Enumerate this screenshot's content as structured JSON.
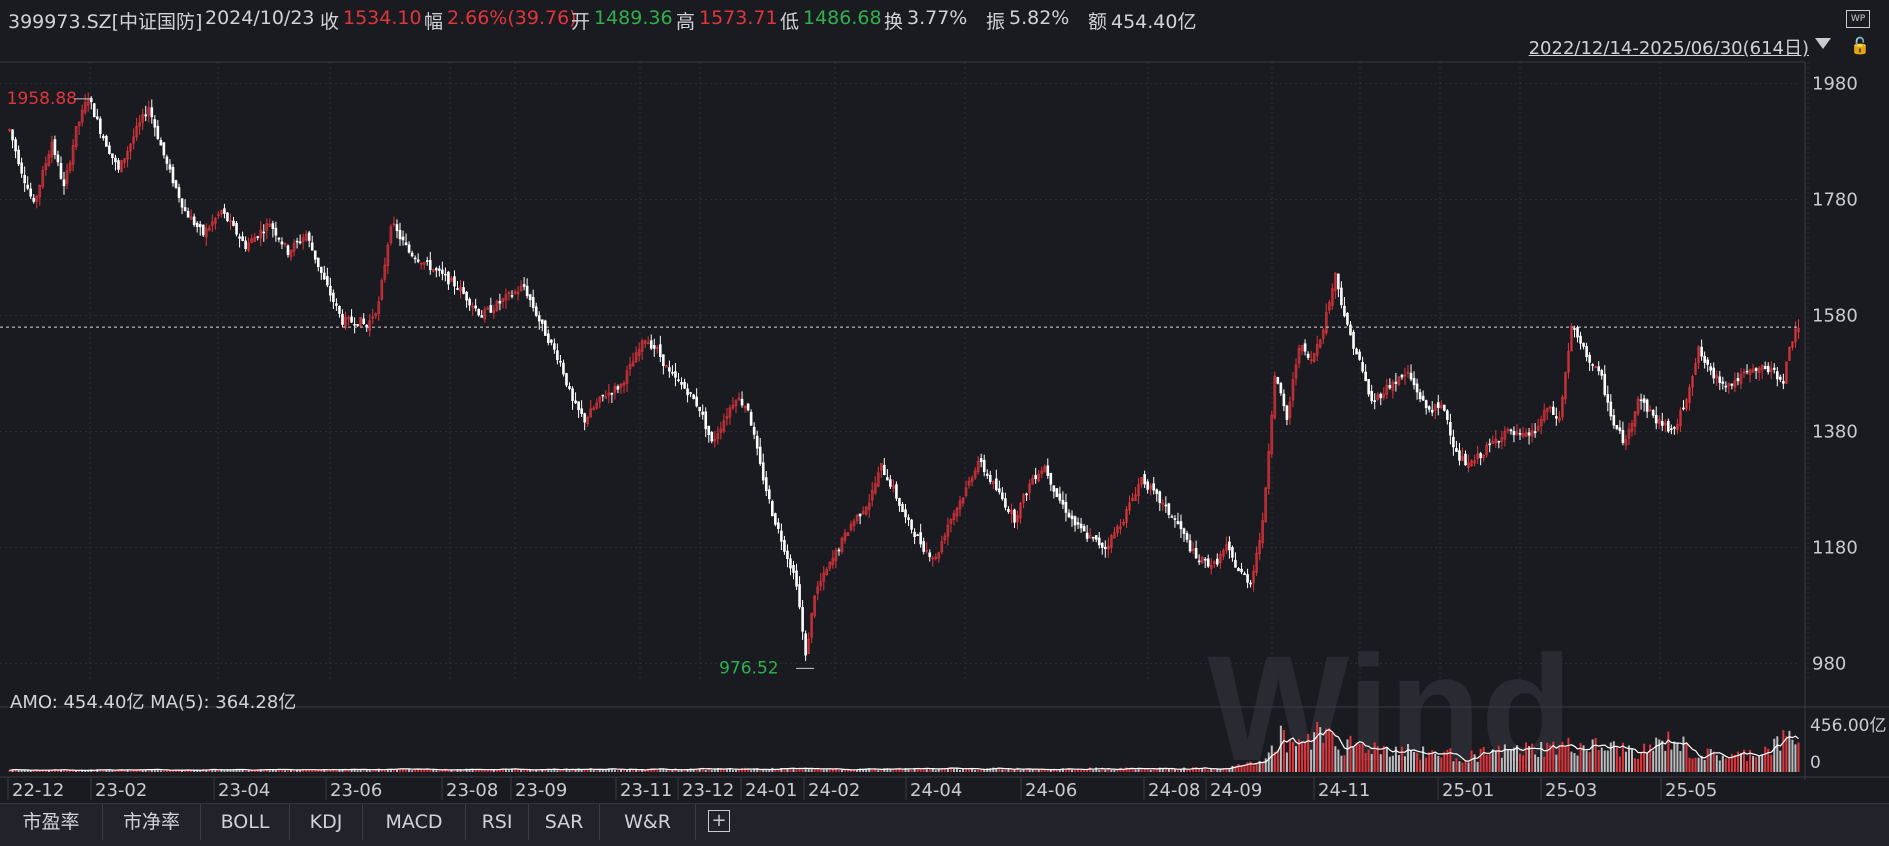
{
  "header": {
    "code": "399973.SZ[中证国防]",
    "date": "2024/10/23",
    "close_label": "收",
    "close_value": "1534.10",
    "chg_label": "幅",
    "chg_value": "2.66%(39.76)",
    "open_label": "开",
    "open_value": "1489.36",
    "high_label": "高",
    "high_value": "1573.71",
    "low_label": "低",
    "low_value": "1486.68",
    "turnover_label": "换",
    "turnover_value": "3.77%",
    "amp_label": "振",
    "amp_value": "5.82%",
    "amount_label": "额",
    "amount_value": "454.40亿",
    "range": "2022/12/14-2025/06/30(614日)",
    "wp_icon_label": "WP"
  },
  "volume_panel": {
    "label": "AMO: 454.40亿 MA(5): 364.28亿"
  },
  "tabs": [
    "市盈率",
    "市净率",
    "BOLL",
    "KDJ",
    "MACD",
    "RSI",
    "SAR",
    "W&R"
  ],
  "watermark": "Wind",
  "colors": {
    "up": "#e0353b",
    "down": "#ffffff",
    "bg": "#1a1b21",
    "grid": "#2c2e37"
  },
  "chart_data": {
    "type": "candlestick",
    "price_axis_ticks": [
      "1980",
      "1780",
      "1580",
      "1380",
      "1180",
      "980"
    ],
    "price_range": [
      960,
      2000
    ],
    "volume_axis_ticks": [
      "456.00亿",
      "0"
    ],
    "x_tick_labels": [
      "22-12",
      "23-02",
      "23-04",
      "23-06",
      "23-08",
      "23-09",
      "23-11",
      "23-12",
      "24-01",
      "24-02",
      "24-04",
      "24-06",
      "24-08",
      "24-09",
      "24-11",
      "25-01",
      "25-03",
      "25-05"
    ],
    "max_marker": {
      "value": 1958.88,
      "label": "1958.88"
    },
    "min_marker": {
      "value": 976.52,
      "label": "976.52"
    },
    "reference_line": 1560,
    "price_path": [
      [
        0,
        1900
      ],
      [
        4,
        1830
      ],
      [
        8,
        1770
      ],
      [
        14,
        1880
      ],
      [
        18,
        1800
      ],
      [
        22,
        1900
      ],
      [
        26,
        1958
      ],
      [
        30,
        1900
      ],
      [
        36,
        1830
      ],
      [
        42,
        1900
      ],
      [
        46,
        1940
      ],
      [
        52,
        1840
      ],
      [
        58,
        1760
      ],
      [
        64,
        1720
      ],
      [
        70,
        1760
      ],
      [
        78,
        1700
      ],
      [
        86,
        1740
      ],
      [
        92,
        1690
      ],
      [
        98,
        1720
      ],
      [
        104,
        1640
      ],
      [
        110,
        1570
      ],
      [
        116,
        1570
      ],
      [
        118,
        1560
      ],
      [
        122,
        1600
      ],
      [
        126,
        1740
      ],
      [
        132,
        1690
      ],
      [
        140,
        1660
      ],
      [
        148,
        1630
      ],
      [
        156,
        1580
      ],
      [
        164,
        1610
      ],
      [
        170,
        1630
      ],
      [
        176,
        1560
      ],
      [
        182,
        1500
      ],
      [
        186,
        1430
      ],
      [
        190,
        1400
      ],
      [
        196,
        1440
      ],
      [
        202,
        1460
      ],
      [
        206,
        1500
      ],
      [
        210,
        1540
      ],
      [
        214,
        1520
      ],
      [
        218,
        1480
      ],
      [
        224,
        1450
      ],
      [
        228,
        1420
      ],
      [
        232,
        1360
      ],
      [
        236,
        1400
      ],
      [
        240,
        1440
      ],
      [
        244,
        1420
      ],
      [
        248,
        1320
      ],
      [
        252,
        1240
      ],
      [
        256,
        1180
      ],
      [
        260,
        1120
      ],
      [
        263,
        990
      ],
      [
        266,
        1100
      ],
      [
        272,
        1160
      ],
      [
        278,
        1220
      ],
      [
        284,
        1260
      ],
      [
        288,
        1320
      ],
      [
        292,
        1280
      ],
      [
        296,
        1230
      ],
      [
        302,
        1180
      ],
      [
        306,
        1160
      ],
      [
        310,
        1220
      ],
      [
        316,
        1280
      ],
      [
        320,
        1330
      ],
      [
        326,
        1280
      ],
      [
        332,
        1230
      ],
      [
        338,
        1300
      ],
      [
        342,
        1320
      ],
      [
        346,
        1270
      ],
      [
        352,
        1220
      ],
      [
        356,
        1200
      ],
      [
        362,
        1180
      ],
      [
        368,
        1230
      ],
      [
        374,
        1300
      ],
      [
        380,
        1260
      ],
      [
        386,
        1220
      ],
      [
        392,
        1160
      ],
      [
        398,
        1150
      ],
      [
        402,
        1180
      ],
      [
        406,
        1140
      ],
      [
        410,
        1120
      ],
      [
        414,
        1220
      ],
      [
        418,
        1480
      ],
      [
        422,
        1400
      ],
      [
        426,
        1530
      ],
      [
        430,
        1500
      ],
      [
        434,
        1560
      ],
      [
        438,
        1650
      ],
      [
        442,
        1560
      ],
      [
        446,
        1500
      ],
      [
        450,
        1430
      ],
      [
        456,
        1460
      ],
      [
        462,
        1480
      ],
      [
        468,
        1420
      ],
      [
        474,
        1420
      ],
      [
        478,
        1340
      ],
      [
        482,
        1320
      ],
      [
        488,
        1350
      ],
      [
        494,
        1380
      ],
      [
        500,
        1370
      ],
      [
        504,
        1380
      ],
      [
        508,
        1420
      ],
      [
        512,
        1400
      ],
      [
        516,
        1560
      ],
      [
        520,
        1520
      ],
      [
        526,
        1470
      ],
      [
        530,
        1390
      ],
      [
        534,
        1360
      ],
      [
        538,
        1440
      ],
      [
        544,
        1400
      ],
      [
        550,
        1380
      ],
      [
        554,
        1440
      ],
      [
        558,
        1520
      ],
      [
        562,
        1480
      ],
      [
        568,
        1460
      ],
      [
        574,
        1480
      ],
      [
        580,
        1490
      ],
      [
        586,
        1470
      ],
      [
        588,
        1520
      ],
      [
        590,
        1560
      ]
    ],
    "volume_path": [
      [
        0,
        20
      ],
      [
        100,
        24
      ],
      [
        200,
        28
      ],
      [
        250,
        30
      ],
      [
        300,
        32
      ],
      [
        400,
        34
      ],
      [
        412,
        90
      ],
      [
        420,
        340
      ],
      [
        426,
        300
      ],
      [
        432,
        400
      ],
      [
        436,
        420
      ],
      [
        440,
        280
      ],
      [
        460,
        220
      ],
      [
        480,
        160
      ],
      [
        500,
        220
      ],
      [
        520,
        260
      ],
      [
        530,
        230
      ],
      [
        540,
        210
      ],
      [
        550,
        330
      ],
      [
        556,
        180
      ],
      [
        570,
        150
      ],
      [
        580,
        220
      ],
      [
        590,
        360
      ]
    ],
    "volume_max": 456,
    "unit": "亿"
  }
}
